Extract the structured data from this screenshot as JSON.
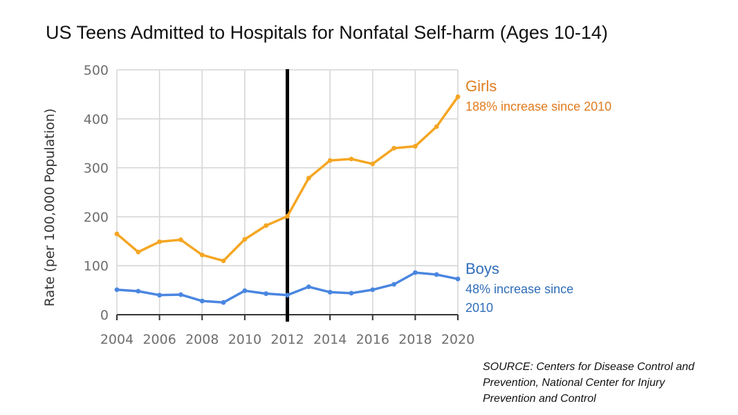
{
  "chart_data": {
    "type": "line",
    "title": "US Teens Admitted to Hospitals for Nonfatal Self-harm (Ages 10-14)",
    "xlabel": "",
    "ylabel": "Rate (per 100,000 Population)",
    "x": [
      2004,
      2005,
      2006,
      2007,
      2008,
      2009,
      2010,
      2011,
      2012,
      2013,
      2014,
      2015,
      2016,
      2017,
      2018,
      2019,
      2020
    ],
    "xticks": [
      "2004",
      "2006",
      "2008",
      "2010",
      "2012",
      "2014",
      "2016",
      "2018",
      "2020"
    ],
    "yticks": [
      "0",
      "100",
      "200",
      "300",
      "400",
      "500"
    ],
    "ylim": [
      0,
      500
    ],
    "xlim": [
      2004,
      2020
    ],
    "grid": true,
    "vertical_marker_x": 2012,
    "series": [
      {
        "name": "Girls",
        "color": "#f5a623",
        "label_color": "#e07b1f",
        "values": [
          165,
          128,
          149,
          153,
          122,
          110,
          154,
          182,
          201,
          279,
          315,
          318,
          308,
          340,
          344,
          384,
          445
        ],
        "label": "Girls",
        "sublabel": [
          "188% increase since 2010"
        ]
      },
      {
        "name": "Boys",
        "color": "#4a86e0",
        "label_color": "#2f6db8",
        "values": [
          51,
          48,
          40,
          41,
          28,
          25,
          49,
          43,
          40,
          57,
          46,
          44,
          51,
          62,
          86,
          82,
          73
        ],
        "label": "Boys",
        "sublabel": [
          "48% increase since",
          "2010"
        ]
      }
    ]
  },
  "source": {
    "lines": [
      "SOURCE: Centers for Disease Control and",
      "Prevention, National Center for Injury",
      "Prevention and Control"
    ]
  }
}
